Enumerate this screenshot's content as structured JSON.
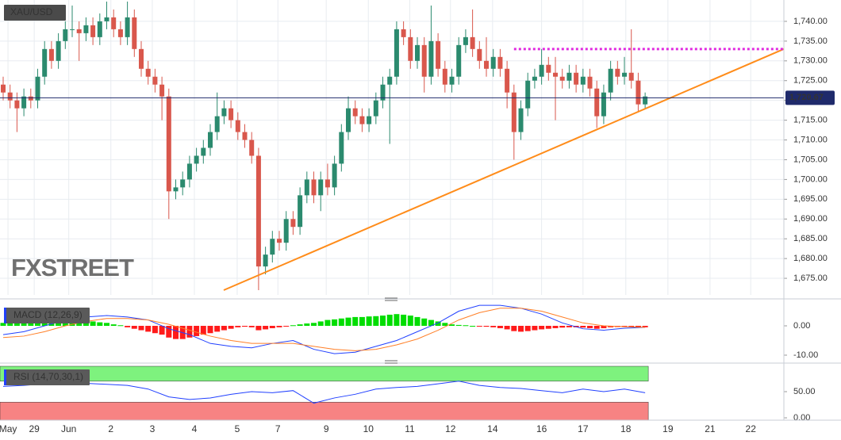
{
  "chart_data": [
    {
      "type": "candlestick",
      "title": "XAU/USD",
      "watermark": "FXSTREET",
      "open": [
        1724,
        1722,
        1720,
        1718,
        1721,
        1720,
        1726,
        1733,
        1730,
        1735,
        1738,
        1738,
        1737,
        1739,
        1736,
        1740,
        1741,
        1738,
        1736,
        1741,
        1733,
        1728,
        1726,
        1724,
        1721,
        1697,
        1698,
        1700,
        1704,
        1706,
        1708,
        1712,
        1716,
        1718,
        1715,
        1712,
        1710,
        1706,
        1678,
        1681,
        1685,
        1684,
        1690,
        1688,
        1696,
        1700,
        1696,
        1700,
        1698,
        1704,
        1712,
        1718,
        1716,
        1714,
        1716,
        1720,
        1724,
        1726,
        1738,
        1736,
        1730,
        1734,
        1726,
        1735,
        1728,
        1724,
        1726,
        1734,
        1736,
        1733,
        1730,
        1728,
        1731,
        1728,
        1722,
        1712,
        1718,
        1725,
        1726,
        1729,
        1727,
        1726,
        1725,
        1727,
        1724,
        1726,
        1723,
        1716,
        1722,
        1728,
        1726,
        1727,
        1725,
        1719
      ],
      "high": [
        1726,
        1724,
        1722,
        1723,
        1723,
        1728,
        1735,
        1735,
        1737,
        1740,
        1744,
        1740,
        1741,
        1741,
        1742,
        1745,
        1743,
        1740,
        1745,
        1743,
        1735,
        1730,
        1728,
        1726,
        1723,
        1700,
        1702,
        1706,
        1708,
        1710,
        1714,
        1722,
        1720,
        1720,
        1717,
        1714,
        1712,
        1708,
        1683,
        1687,
        1687,
        1692,
        1692,
        1698,
        1702,
        1702,
        1702,
        1704,
        1706,
        1714,
        1721,
        1720,
        1718,
        1718,
        1722,
        1726,
        1728,
        1740,
        1740,
        1738,
        1736,
        1736,
        1744,
        1737,
        1730,
        1728,
        1736,
        1738,
        1743,
        1735,
        1736,
        1733,
        1733,
        1730,
        1724,
        1720,
        1727,
        1728,
        1733,
        1731,
        1731,
        1728,
        1729,
        1729,
        1728,
        1728,
        1725,
        1724,
        1730,
        1730,
        1731,
        1738,
        1727,
        1722
      ],
      "low": [
        1720,
        1718,
        1712,
        1716,
        1718,
        1718,
        1724,
        1728,
        1728,
        1733,
        1736,
        1730,
        1735,
        1734,
        1734,
        1738,
        1736,
        1734,
        1734,
        1731,
        1726,
        1724,
        1722,
        1715,
        1690,
        1695,
        1696,
        1698,
        1702,
        1704,
        1706,
        1710,
        1714,
        1713,
        1710,
        1708,
        1704,
        1672,
        1676,
        1679,
        1682,
        1682,
        1686,
        1686,
        1694,
        1694,
        1692,
        1696,
        1696,
        1702,
        1710,
        1714,
        1712,
        1712,
        1714,
        1718,
        1709,
        1724,
        1734,
        1728,
        1728,
        1722,
        1724,
        1726,
        1722,
        1722,
        1724,
        1732,
        1731,
        1728,
        1726,
        1726,
        1726,
        1718,
        1705,
        1710,
        1716,
        1723,
        1724,
        1725,
        1715,
        1723,
        1723,
        1722,
        1722,
        1721,
        1713,
        1714,
        1720,
        1724,
        1724,
        1723,
        1717,
        1718
      ],
      "close": [
        1722,
        1720,
        1718,
        1721,
        1720,
        1726,
        1733,
        1730,
        1735,
        1738,
        1738,
        1737,
        1739,
        1736,
        1740,
        1741,
        1738,
        1736,
        1741,
        1733,
        1728,
        1726,
        1724,
        1721,
        1697,
        1698,
        1700,
        1704,
        1706,
        1708,
        1712,
        1716,
        1718,
        1715,
        1712,
        1710,
        1706,
        1678,
        1681,
        1685,
        1684,
        1690,
        1688,
        1696,
        1700,
        1696,
        1700,
        1698,
        1704,
        1712,
        1718,
        1716,
        1714,
        1716,
        1720,
        1724,
        1726,
        1738,
        1736,
        1730,
        1734,
        1726,
        1735,
        1728,
        1724,
        1726,
        1734,
        1736,
        1733,
        1730,
        1728,
        1731,
        1728,
        1722,
        1712,
        1718,
        1725,
        1726,
        1729,
        1727,
        1726,
        1725,
        1727,
        1724,
        1726,
        1723,
        1716,
        1722,
        1728,
        1726,
        1727,
        1725,
        1719,
        1721
      ],
      "up_color": "#2b8a6e",
      "down_color": "#d9574c",
      "xlim": [
        -0.46,
        113.1
      ],
      "xticks": [
        {
          "value": 0.7,
          "label": "May"
        },
        {
          "value": 4.5,
          "label": "29"
        },
        {
          "value": 9.5,
          "label": "Jun"
        },
        {
          "value": 15.6,
          "label": "2"
        },
        {
          "value": 21.6,
          "label": "3"
        },
        {
          "value": 27.7,
          "label": "4"
        },
        {
          "value": 33.9,
          "label": "5"
        },
        {
          "value": 39.8,
          "label": "7"
        },
        {
          "value": 46.8,
          "label": "9"
        },
        {
          "value": 52.9,
          "label": "10"
        },
        {
          "value": 58.9,
          "label": "11"
        },
        {
          "value": 64.8,
          "label": "12"
        },
        {
          "value": 70.9,
          "label": "14"
        },
        {
          "value": 78,
          "label": "16"
        },
        {
          "value": 84,
          "label": "17"
        },
        {
          "value": 90.2,
          "label": "18"
        },
        {
          "value": 96.3,
          "label": "19"
        },
        {
          "value": 102.4,
          "label": "21"
        },
        {
          "value": 108.3,
          "label": "22"
        }
      ],
      "ylim": [
        1670.8,
        1745.4
      ],
      "yticks": [
        {
          "value": 1675,
          "label": "1,675.00"
        },
        {
          "value": 1680,
          "label": "1,680.00"
        },
        {
          "value": 1685,
          "label": "1,685.00"
        },
        {
          "value": 1690,
          "label": "1,690.00"
        },
        {
          "value": 1695,
          "label": "1,695.00"
        },
        {
          "value": 1700,
          "label": "1,700.00"
        },
        {
          "value": 1705,
          "label": "1,705.00"
        },
        {
          "value": 1710,
          "label": "1,710.00"
        },
        {
          "value": 1715,
          "label": "1,715.00"
        },
        {
          "value": 1720,
          "label": "1,720.00"
        },
        {
          "value": 1725,
          "label": "1,725.00"
        },
        {
          "value": 1730,
          "label": "1,730.00"
        },
        {
          "value": 1735,
          "label": "1,735.00"
        },
        {
          "value": 1740,
          "label": "1,740.00"
        }
      ],
      "grid": true,
      "last_price": {
        "value": 1720.67,
        "label": "1,720.67",
        "color": "#1f2a6b"
      },
      "trendline": {
        "from": [
          31.95,
          1672
        ],
        "to": [
          113.1,
          1733
        ],
        "color": "#ff8c1a"
      },
      "resistance": {
        "value": 1733,
        "from": 74,
        "color": "#e02be0"
      }
    },
    {
      "type": "macd",
      "title": "MACD (12,26,9)",
      "histogram": [
        1,
        1.5,
        1.5,
        1.5,
        1.8,
        2,
        2,
        2.2,
        2.2,
        2,
        2,
        1.8,
        1.8,
        1.5,
        1.2,
        1,
        0.5,
        0.2,
        -0.5,
        -1,
        -1.5,
        -2,
        -2.5,
        -3,
        -4,
        -4.5,
        -4.5,
        -4,
        -3.5,
        -3,
        -2.5,
        -2,
        -1.5,
        -1,
        -0.5,
        -0.3,
        -0.5,
        -1.5,
        -1.2,
        -0.8,
        -0.5,
        -0.2,
        0.2,
        0.5,
        0.8,
        1,
        1.5,
        2,
        2.2,
        2.5,
        2.8,
        3,
        3,
        3.2,
        3.3,
        3.5,
        3.8,
        4,
        3.8,
        3.5,
        3,
        2.5,
        2,
        1.5,
        1,
        0.5,
        0.3,
        0.2,
        0,
        -0.2,
        -0.3,
        -0.5,
        -0.8,
        -1.2,
        -1.8,
        -2,
        -1.8,
        -1.5,
        -1.2,
        -1,
        -0.8,
        -0.6,
        -0.5,
        -0.5,
        -0.6,
        -0.8,
        -1,
        -0.8,
        -0.5,
        -0.4,
        -0.3,
        -0.3,
        -0.4,
        -0.5
      ],
      "pos_color": "#00dd00",
      "neg_color": "#ff1a1a",
      "x": [
        0,
        3,
        6,
        9,
        12,
        15,
        18,
        21,
        24,
        27,
        30,
        33,
        36,
        39,
        42,
        45,
        48,
        51,
        54,
        57,
        60,
        63,
        66,
        69,
        72,
        75,
        78,
        81,
        84,
        87,
        90,
        93
      ],
      "series": [
        {
          "name": "MACD",
          "color": "#2140ff",
          "values": [
            -3,
            -2,
            0,
            2,
            3,
            3.5,
            3,
            2,
            -1,
            -3,
            -6,
            -7,
            -7.5,
            -6,
            -5,
            -8,
            -9.5,
            -9,
            -7,
            -5,
            -2,
            1,
            5,
            7,
            7,
            6,
            4,
            1,
            -1,
            -1.5,
            -0.8,
            -0.5
          ]
        },
        {
          "name": "Signal",
          "color": "#ff7f27",
          "values": [
            -4,
            -3.5,
            -2,
            0,
            1.5,
            2.5,
            2.5,
            2,
            0.5,
            -1.5,
            -3.5,
            -5,
            -6,
            -6,
            -6,
            -7,
            -8,
            -8.5,
            -8,
            -6.5,
            -4.5,
            -1.5,
            2,
            4.5,
            6,
            6,
            5,
            3,
            1,
            0,
            -0.3,
            -0.5
          ]
        }
      ],
      "ylim": [
        -11.9,
        7.57
      ],
      "yticks": [
        {
          "value": 0,
          "label": "0.00"
        },
        {
          "value": -10,
          "label": "-10.00"
        }
      ]
    },
    {
      "type": "rsi",
      "title": "RSI (14,70,30,1)",
      "x": [
        0,
        3,
        6,
        9,
        12,
        15,
        18,
        21,
        24,
        27,
        30,
        33,
        36,
        39,
        42,
        45,
        48,
        51,
        54,
        57,
        60,
        63,
        66,
        69,
        72,
        75,
        78,
        81,
        84,
        87,
        90,
        93
      ],
      "values": [
        60,
        62,
        65,
        68,
        66,
        64,
        62,
        55,
        40,
        35,
        38,
        45,
        50,
        48,
        52,
        28,
        38,
        45,
        55,
        58,
        60,
        65,
        70,
        62,
        58,
        56,
        52,
        48,
        55,
        50,
        55,
        48
      ],
      "color": "#2140ff",
      "overbought": 70,
      "oversold": 30,
      "overbought_color": "#7ef27e",
      "oversold_color": "#f78383",
      "ylim": [
        -4.5,
        98.5
      ],
      "yticks": [
        {
          "value": 50,
          "label": "50.00"
        },
        {
          "value": 0,
          "label": "0.00"
        }
      ]
    }
  ]
}
